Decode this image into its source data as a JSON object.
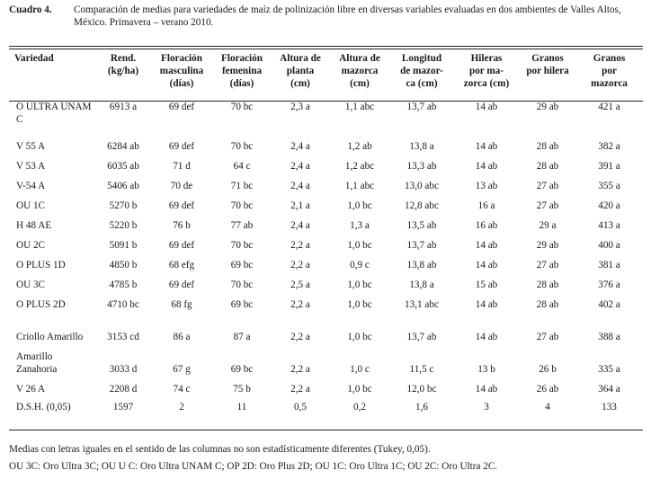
{
  "caption": {
    "label": "Cuadro 4.",
    "text": "Comparación de medias para variedades de maíz de polinización libre en diversas variables evaluadas en dos ambientes de Valles Altos, México. Primavera – verano 2010."
  },
  "table": {
    "headers": [
      [
        "Variedad"
      ],
      [
        "Rend.",
        "(kg/ha)"
      ],
      [
        "Floración",
        "masculina",
        "(días)"
      ],
      [
        "Floración",
        "femenina",
        "(días)"
      ],
      [
        "Altura de",
        "planta",
        "(cm)"
      ],
      [
        "Altura de",
        "mazorca",
        "(cm)"
      ],
      [
        "Longitud",
        "de mazor-",
        "ca (cm)"
      ],
      [
        "Hileras",
        "por ma-",
        "zorca (cm)"
      ],
      [
        "Granos",
        "por hilera"
      ],
      [
        "Granos",
        "por",
        "mazorca"
      ]
    ],
    "rows": [
      [
        "O ULTRA UNAM C",
        "6913 a",
        "69 def",
        "70 bc",
        "2,3 a",
        "1,1 abc",
        "13,7 ab",
        "14 ab",
        "29 ab",
        "421 a"
      ],
      [
        "V 55 A",
        "6284 ab",
        "69 def",
        "70 bc",
        "2,4 a",
        "1,2 ab",
        "13,8 a",
        "14 ab",
        "28 ab",
        "382 a"
      ],
      [
        "V 53 A",
        "6035 ab",
        "71 d",
        "64 c",
        "2,4 a",
        "1,2 abc",
        "13,3 ab",
        "14 ab",
        "28 ab",
        "391 a"
      ],
      [
        "V-54 A",
        "5406 ab",
        "70 de",
        "71 bc",
        "2,4 a",
        "1,1 abc",
        "13,0 abc",
        "13 ab",
        "27 ab",
        "355 a"
      ],
      [
        "OU 1C",
        "5270 b",
        "69 def",
        "70 bc",
        "2,1 a",
        "1,0 bc",
        "12,8 abc",
        "16 a",
        "27 ab",
        "420 a"
      ],
      [
        "H 48 AE",
        "5220 b",
        "76 b",
        "77 ab",
        "2,4 a",
        "1,3 a",
        "13,5 ab",
        "16 ab",
        "29 a",
        "413 a"
      ],
      [
        "OU 2C",
        "5091 b",
        "69 def",
        "70 bc",
        "2,2 a",
        "1,0 bc",
        "13,7 ab",
        "14 ab",
        "29 ab",
        "400 a"
      ],
      [
        "O PLUS 1D",
        "4850 b",
        "68 efg",
        "69 bc",
        "2,2 a",
        "0,9  c",
        "13,8 ab",
        "14 ab",
        "27 ab",
        "381 a"
      ],
      [
        "OU 3C",
        "4785 b",
        "69 def",
        "70 bc",
        "2,5 a",
        "1,0 bc",
        "13,8 a",
        "15 ab",
        "28 ab",
        "376 a"
      ],
      [
        "O PLUS 2D",
        "4710 bc",
        "68 fg",
        "69 bc",
        "2,2 a",
        "1,0 bc",
        "13,1 abc",
        "14 ab",
        "28 ab",
        "402 a"
      ],
      [
        "Criollo Amarillo",
        "3153 cd",
        "86 a",
        "87 a",
        "2,2 a",
        "1,0 bc",
        "13,7 ab",
        "14 ab",
        "27 ab",
        "388 a"
      ],
      [
        "Amarillo Zanahoria",
        "3033 d",
        "67 g",
        "69 bc",
        "2,2 a",
        "1,0 c",
        "11,5 c",
        "13 b",
        "26 b",
        "335 a"
      ],
      [
        "V 26 A",
        "2208 d",
        "74 c",
        "75 b",
        "2,2 a",
        "1,0 bc",
        "12,0 bc",
        "14 ab",
        "26 ab",
        "364 a"
      ],
      [
        "D.S.H. (0,05)",
        "1597",
        "2",
        "11",
        "0,5",
        "0,2",
        "1,6",
        "3",
        "4",
        "133"
      ]
    ]
  },
  "notes": [
    "Medias con letras iguales en el sentido de las columnas no son estadísticamente diferentes (Tukey, 0,05).",
    "OU 3C: Oro Ultra 3C; OU U C: Oro Ultra UNAM C; OP 2D: Oro Plus 2D; OU 1C: Oro Ultra 1C; OU 2C: Oro Ultra 2C."
  ]
}
